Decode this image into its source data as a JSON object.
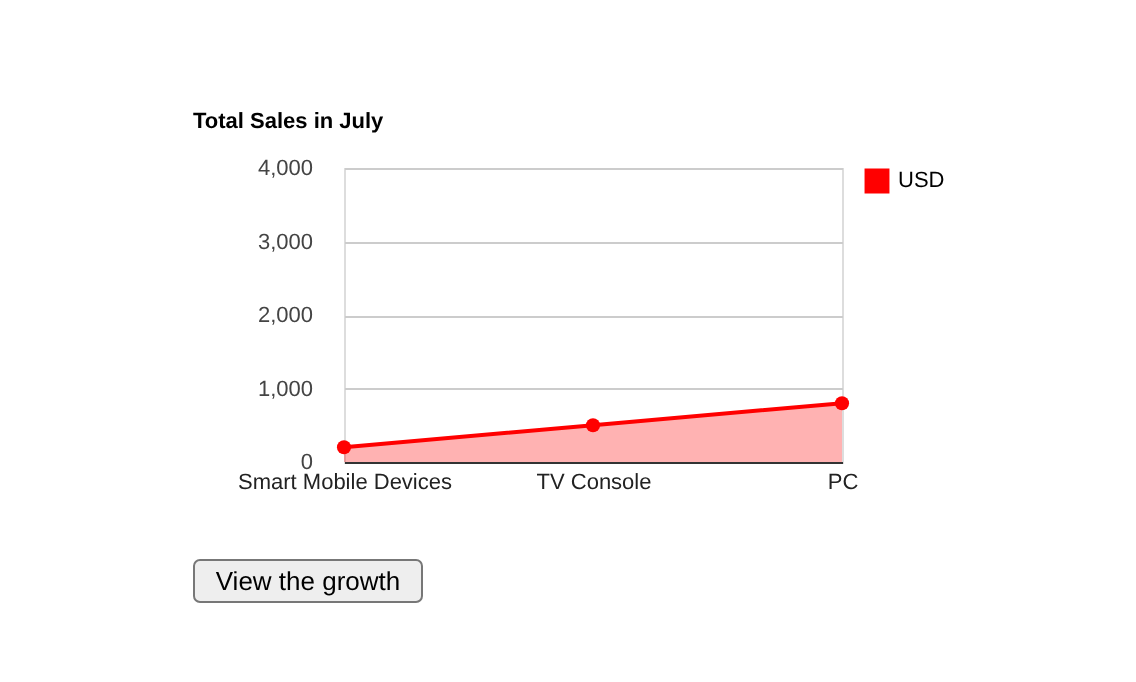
{
  "chart_data": {
    "type": "area",
    "title": "Total Sales in July",
    "categories": [
      "Smart Mobile Devices",
      "TV Console",
      "PC"
    ],
    "series": [
      {
        "name": "USD",
        "color": "#ff0000",
        "values": [
          200,
          500,
          800
        ]
      }
    ],
    "ylim": [
      0,
      4000
    ],
    "yticks": [
      {
        "value": 0,
        "label": "0"
      },
      {
        "value": 1000,
        "label": "1,000"
      },
      {
        "value": 2000,
        "label": "2,000"
      },
      {
        "value": 3000,
        "label": "3,000"
      },
      {
        "value": 4000,
        "label": "4,000"
      }
    ],
    "grid": "y",
    "legend": "top right",
    "marker": "circle",
    "line_style": "solid",
    "annotations": [
      "View the growth"
    ]
  }
}
